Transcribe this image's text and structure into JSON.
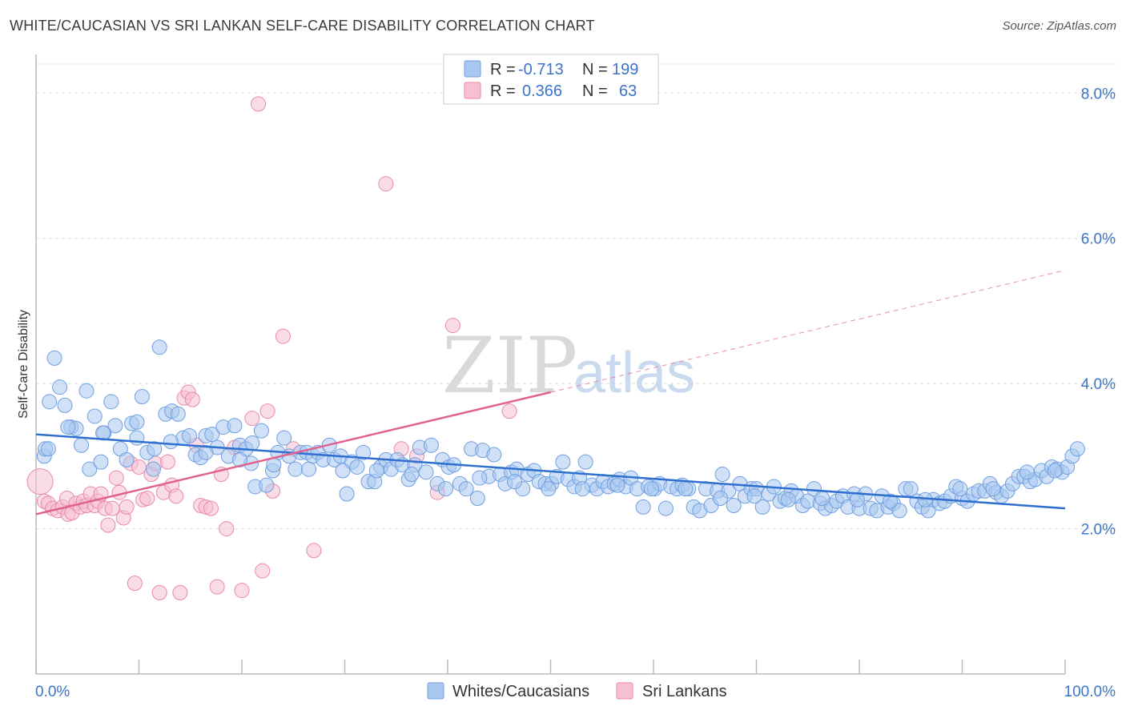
{
  "title": "WHITE/CAUCASIAN VS SRI LANKAN SELF-CARE DISABILITY CORRELATION CHART",
  "source": "Source: ZipAtlas.com",
  "watermark": {
    "zip": "ZIP",
    "atlas": "atlas"
  },
  "colors": {
    "blue_fill": "#a9c8f0",
    "blue_stroke": "#6f9fe0",
    "blue_line": "#2e6fd0",
    "pink_fill": "#f6bfd2",
    "pink_stroke": "#e88aa9",
    "pink_line": "#e0608e",
    "grid": "#dcdcdc",
    "axis_text": "#3b74c9"
  },
  "legend_top": {
    "rows": [
      {
        "r_label": "R =",
        "r_value": "-0.713",
        "n_label": "N =",
        "n_value": "199",
        "color": "#a9c8f0"
      },
      {
        "r_label": "R =",
        "r_value": "0.366",
        "n_label": "N =",
        "n_value": "63",
        "color": "#f6bfd2"
      }
    ]
  },
  "legend_bottom": [
    {
      "label": "Whites/Caucasians",
      "color": "#a9c8f0"
    },
    {
      "label": "Sri Lankans",
      "color": "#f6bfd2"
    }
  ],
  "chart_data": {
    "type": "scatter",
    "title": "WHITE/CAUCASIAN VS SRI LANKAN SELF-CARE DISABILITY CORRELATION CHART",
    "xlabel": "",
    "ylabel": "Self-Care Disability",
    "xlim": [
      0,
      100
    ],
    "ylim": [
      0,
      8.4
    ],
    "x_tick_labels": [
      "0.0%",
      "100.0%"
    ],
    "y_ticks": [
      2.0,
      4.0,
      6.0,
      8.0
    ],
    "y_tick_labels": [
      "2.0%",
      "4.0%",
      "6.0%",
      "8.0%"
    ],
    "grid": true,
    "legend_position": "top-center",
    "series": [
      {
        "name": "Whites/Caucasians",
        "trend": {
          "x": [
            0,
            100
          ],
          "y": [
            3.3,
            2.28
          ]
        },
        "points": [
          [
            0.8,
            3.0
          ],
          [
            0.9,
            3.1
          ],
          [
            1.3,
            3.75
          ],
          [
            1.8,
            4.35
          ],
          [
            2.3,
            3.95
          ],
          [
            2.8,
            3.7
          ],
          [
            3.4,
            3.4
          ],
          [
            3.9,
            3.38
          ],
          [
            4.4,
            3.15
          ],
          [
            4.9,
            3.9
          ],
          [
            5.2,
            2.82
          ],
          [
            5.7,
            3.55
          ],
          [
            6.3,
            2.92
          ],
          [
            6.6,
            3.32
          ],
          [
            7.3,
            3.75
          ],
          [
            7.7,
            3.42
          ],
          [
            8.2,
            3.1
          ],
          [
            8.8,
            2.95
          ],
          [
            9.3,
            3.45
          ],
          [
            9.8,
            3.47
          ],
          [
            10.3,
            3.82
          ],
          [
            10.8,
            3.05
          ],
          [
            11.4,
            2.82
          ],
          [
            12.0,
            4.5
          ],
          [
            12.6,
            3.58
          ],
          [
            13.2,
            3.62
          ],
          [
            13.8,
            3.58
          ],
          [
            14.3,
            3.25
          ],
          [
            14.9,
            3.28
          ],
          [
            15.5,
            3.02
          ],
          [
            16.0,
            2.98
          ],
          [
            16.5,
            3.28
          ],
          [
            17.1,
            3.3
          ],
          [
            17.6,
            3.12
          ],
          [
            18.2,
            3.4
          ],
          [
            18.7,
            3.0
          ],
          [
            19.3,
            3.42
          ],
          [
            19.8,
            3.15
          ],
          [
            20.4,
            3.1
          ],
          [
            20.9,
            2.9
          ],
          [
            21.3,
            2.58
          ],
          [
            21.9,
            3.35
          ],
          [
            22.4,
            2.6
          ],
          [
            23.0,
            2.8
          ],
          [
            23.5,
            3.05
          ],
          [
            24.1,
            3.25
          ],
          [
            24.6,
            3.0
          ],
          [
            25.2,
            2.82
          ],
          [
            25.7,
            3.05
          ],
          [
            26.3,
            3.05
          ],
          [
            26.9,
            3.0
          ],
          [
            27.4,
            3.05
          ],
          [
            27.9,
            2.95
          ],
          [
            28.5,
            3.15
          ],
          [
            29.0,
            2.95
          ],
          [
            29.6,
            3.0
          ],
          [
            30.2,
            2.48
          ],
          [
            30.7,
            2.92
          ],
          [
            31.2,
            2.85
          ],
          [
            31.8,
            3.05
          ],
          [
            32.3,
            2.65
          ],
          [
            32.9,
            2.65
          ],
          [
            33.5,
            2.85
          ],
          [
            34.0,
            2.95
          ],
          [
            34.5,
            2.82
          ],
          [
            35.1,
            2.95
          ],
          [
            35.6,
            2.88
          ],
          [
            36.2,
            2.68
          ],
          [
            36.8,
            2.88
          ],
          [
            37.3,
            3.12
          ],
          [
            37.9,
            2.78
          ],
          [
            38.4,
            3.15
          ],
          [
            39.0,
            2.62
          ],
          [
            39.5,
            2.95
          ],
          [
            40.1,
            2.85
          ],
          [
            40.6,
            2.88
          ],
          [
            41.2,
            2.62
          ],
          [
            41.8,
            2.55
          ],
          [
            42.3,
            3.1
          ],
          [
            42.9,
            2.42
          ],
          [
            43.4,
            3.08
          ],
          [
            44.0,
            2.72
          ],
          [
            44.5,
            3.02
          ],
          [
            45.1,
            2.75
          ],
          [
            45.6,
            2.62
          ],
          [
            46.2,
            2.78
          ],
          [
            46.7,
            2.82
          ],
          [
            47.3,
            2.55
          ],
          [
            47.8,
            2.75
          ],
          [
            48.4,
            2.8
          ],
          [
            48.9,
            2.65
          ],
          [
            49.5,
            2.62
          ],
          [
            50.1,
            2.62
          ],
          [
            50.6,
            2.72
          ],
          [
            51.2,
            2.92
          ],
          [
            51.7,
            2.68
          ],
          [
            52.3,
            2.58
          ],
          [
            52.8,
            2.7
          ],
          [
            53.4,
            2.92
          ],
          [
            54.0,
            2.6
          ],
          [
            54.5,
            2.55
          ],
          [
            55.1,
            2.65
          ],
          [
            55.6,
            2.58
          ],
          [
            56.2,
            2.62
          ],
          [
            56.7,
            2.68
          ],
          [
            57.3,
            2.58
          ],
          [
            57.8,
            2.7
          ],
          [
            58.4,
            2.55
          ],
          [
            59.0,
            2.3
          ],
          [
            59.5,
            2.58
          ],
          [
            60.1,
            2.55
          ],
          [
            60.6,
            2.62
          ],
          [
            61.2,
            2.28
          ],
          [
            61.7,
            2.58
          ],
          [
            62.3,
            2.55
          ],
          [
            62.8,
            2.6
          ],
          [
            63.4,
            2.55
          ],
          [
            63.9,
            2.3
          ],
          [
            64.5,
            2.25
          ],
          [
            65.1,
            2.55
          ],
          [
            65.6,
            2.32
          ],
          [
            66.2,
            2.52
          ],
          [
            66.7,
            2.75
          ],
          [
            67.3,
            2.52
          ],
          [
            67.8,
            2.32
          ],
          [
            68.4,
            2.62
          ],
          [
            68.9,
            2.45
          ],
          [
            69.5,
            2.55
          ],
          [
            70.0,
            2.55
          ],
          [
            70.6,
            2.3
          ],
          [
            71.2,
            2.48
          ],
          [
            71.7,
            2.58
          ],
          [
            72.3,
            2.38
          ],
          [
            72.8,
            2.42
          ],
          [
            73.4,
            2.52
          ],
          [
            73.9,
            2.45
          ],
          [
            74.5,
            2.32
          ],
          [
            75.0,
            2.38
          ],
          [
            75.6,
            2.55
          ],
          [
            76.2,
            2.35
          ],
          [
            76.7,
            2.28
          ],
          [
            77.3,
            2.32
          ],
          [
            77.8,
            2.38
          ],
          [
            78.4,
            2.45
          ],
          [
            78.9,
            2.3
          ],
          [
            79.5,
            2.48
          ],
          [
            80.0,
            2.28
          ],
          [
            80.6,
            2.48
          ],
          [
            81.1,
            2.28
          ],
          [
            81.7,
            2.25
          ],
          [
            82.2,
            2.45
          ],
          [
            82.8,
            2.3
          ],
          [
            83.3,
            2.35
          ],
          [
            83.9,
            2.25
          ],
          [
            84.5,
            2.55
          ],
          [
            85.0,
            2.55
          ],
          [
            85.6,
            2.38
          ],
          [
            86.1,
            2.3
          ],
          [
            86.7,
            2.25
          ],
          [
            87.2,
            2.4
          ],
          [
            87.8,
            2.35
          ],
          [
            88.3,
            2.38
          ],
          [
            88.9,
            2.45
          ],
          [
            89.4,
            2.58
          ],
          [
            90.0,
            2.42
          ],
          [
            90.5,
            2.38
          ],
          [
            91.1,
            2.48
          ],
          [
            91.6,
            2.52
          ],
          [
            92.2,
            2.52
          ],
          [
            92.7,
            2.62
          ],
          [
            93.3,
            2.5
          ],
          [
            93.8,
            2.45
          ],
          [
            94.4,
            2.52
          ],
          [
            94.9,
            2.62
          ],
          [
            95.5,
            2.72
          ],
          [
            96.0,
            2.72
          ],
          [
            96.6,
            2.65
          ],
          [
            97.1,
            2.68
          ],
          [
            97.7,
            2.8
          ],
          [
            98.2,
            2.72
          ],
          [
            98.7,
            2.85
          ],
          [
            99.2,
            2.82
          ],
          [
            99.7,
            2.78
          ],
          [
            100.2,
            2.85
          ],
          [
            100.7,
            3.0
          ],
          [
            101.2,
            3.1
          ],
          [
            99.0,
            2.8
          ],
          [
            96.3,
            2.78
          ],
          [
            93.0,
            2.55
          ],
          [
            89.8,
            2.55
          ],
          [
            86.4,
            2.4
          ],
          [
            83.0,
            2.38
          ],
          [
            79.8,
            2.4
          ],
          [
            76.4,
            2.42
          ],
          [
            73.1,
            2.4
          ],
          [
            69.8,
            2.45
          ],
          [
            66.5,
            2.42
          ],
          [
            63.1,
            2.55
          ],
          [
            59.8,
            2.55
          ],
          [
            56.5,
            2.6
          ],
          [
            53.1,
            2.55
          ],
          [
            49.8,
            2.55
          ],
          [
            46.5,
            2.65
          ],
          [
            43.1,
            2.7
          ],
          [
            39.8,
            2.55
          ],
          [
            36.5,
            2.75
          ],
          [
            33.1,
            2.8
          ],
          [
            29.8,
            2.8
          ],
          [
            26.5,
            2.82
          ],
          [
            23.1,
            2.88
          ],
          [
            19.8,
            2.95
          ],
          [
            16.5,
            3.05
          ],
          [
            13.1,
            3.2
          ],
          [
            9.8,
            3.25
          ],
          [
            6.5,
            3.32
          ],
          [
            3.1,
            3.4
          ],
          [
            1.2,
            3.1
          ],
          [
            11.5,
            3.1
          ],
          [
            21.0,
            3.18
          ]
        ]
      },
      {
        "name": "Sri Lankans",
        "trend": {
          "x": [
            0,
            50
          ],
          "y": [
            2.2,
            3.88
          ]
        },
        "trend_dashed": {
          "x": [
            50,
            100
          ],
          "y": [
            3.88,
            5.56
          ]
        },
        "points": [
          [
            0.4,
            2.65
          ],
          [
            0.8,
            2.38
          ],
          [
            1.2,
            2.35
          ],
          [
            1.6,
            2.28
          ],
          [
            2.1,
            2.25
          ],
          [
            2.6,
            2.3
          ],
          [
            3.0,
            2.42
          ],
          [
            3.1,
            2.2
          ],
          [
            3.5,
            2.22
          ],
          [
            3.9,
            2.35
          ],
          [
            4.3,
            2.3
          ],
          [
            4.6,
            2.38
          ],
          [
            4.9,
            2.32
          ],
          [
            5.3,
            2.48
          ],
          [
            5.7,
            2.32
          ],
          [
            6.0,
            2.38
          ],
          [
            6.3,
            2.48
          ],
          [
            6.7,
            2.28
          ],
          [
            7.0,
            2.05
          ],
          [
            7.4,
            2.28
          ],
          [
            7.8,
            2.7
          ],
          [
            8.1,
            2.5
          ],
          [
            8.5,
            2.15
          ],
          [
            8.8,
            2.3
          ],
          [
            9.2,
            2.9
          ],
          [
            9.6,
            1.25
          ],
          [
            10.0,
            2.85
          ],
          [
            10.4,
            2.4
          ],
          [
            10.8,
            2.42
          ],
          [
            11.2,
            2.75
          ],
          [
            11.6,
            2.9
          ],
          [
            12.0,
            1.12
          ],
          [
            12.4,
            2.5
          ],
          [
            12.8,
            2.92
          ],
          [
            13.2,
            2.6
          ],
          [
            13.6,
            2.45
          ],
          [
            14.0,
            1.12
          ],
          [
            14.4,
            3.8
          ],
          [
            14.8,
            3.88
          ],
          [
            15.2,
            3.78
          ],
          [
            15.6,
            3.15
          ],
          [
            16.0,
            2.32
          ],
          [
            16.5,
            2.3
          ],
          [
            17.0,
            2.28
          ],
          [
            17.6,
            1.2
          ],
          [
            18.0,
            2.75
          ],
          [
            18.5,
            2.0
          ],
          [
            19.3,
            3.12
          ],
          [
            20.0,
            1.15
          ],
          [
            21.0,
            3.52
          ],
          [
            21.6,
            7.85
          ],
          [
            22.0,
            1.42
          ],
          [
            22.5,
            3.62
          ],
          [
            23.0,
            2.52
          ],
          [
            24.0,
            4.65
          ],
          [
            25.0,
            3.1
          ],
          [
            27.0,
            1.7
          ],
          [
            34.0,
            6.75
          ],
          [
            35.5,
            3.1
          ],
          [
            37.0,
            3.0
          ],
          [
            39.0,
            2.5
          ],
          [
            40.5,
            4.8
          ],
          [
            46.0,
            3.62
          ]
        ]
      }
    ]
  }
}
